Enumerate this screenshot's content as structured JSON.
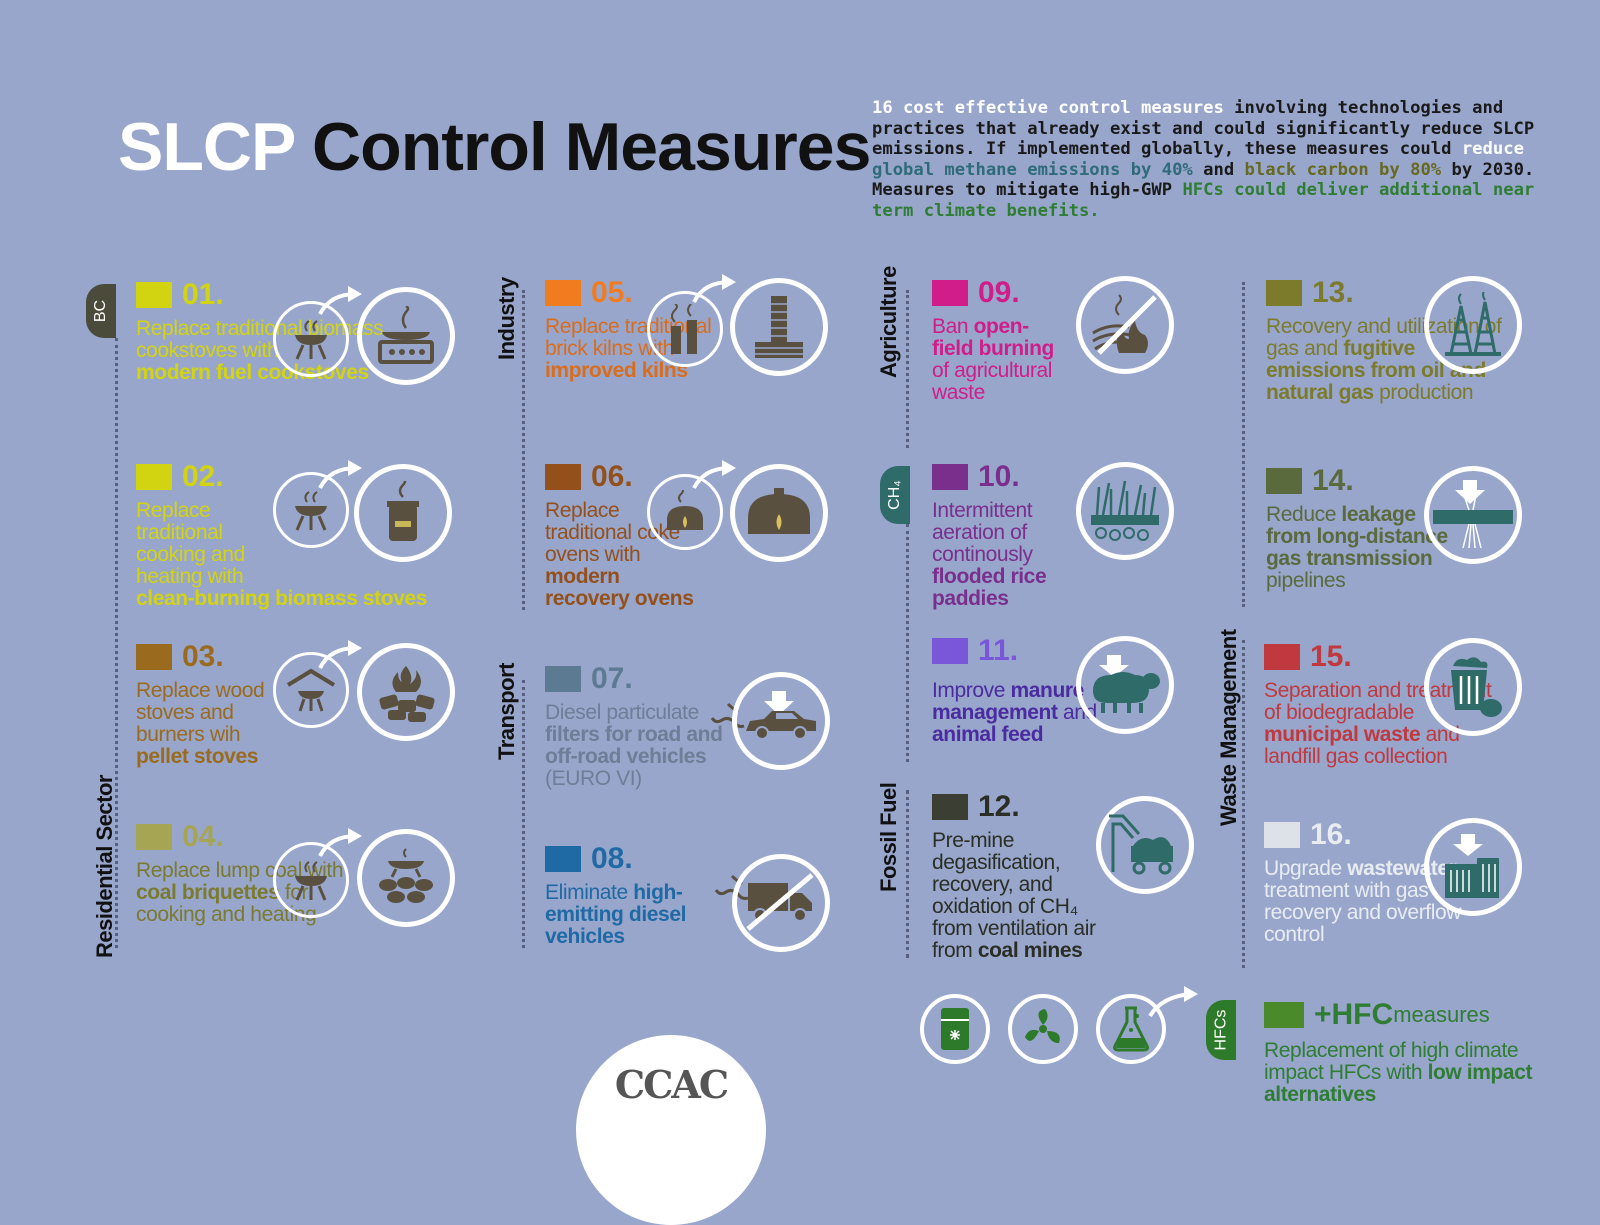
{
  "title": {
    "part1": "SLCP",
    "part2": "Control Measures"
  },
  "intro": {
    "s1": "16 cost effective control measures",
    "s2": " involving technologies and practices that already exist and could significantly reduce SLCP emissions. If implemented globally, these measures could ",
    "s3": "reduce",
    "s4": " global methane emissions by 40%",
    "s5": " and ",
    "s6": "black carbon by 80%",
    "s7": " by 2030. Measures to mitigate high-GWP ",
    "s8": "HFCs could deliver additional near term climate benefits."
  },
  "sectors": {
    "residential": "Residential Sector",
    "industry": "Industry",
    "transport": "Transport",
    "agriculture": "Agriculture",
    "fossil": "Fossil Fuel",
    "waste": "Waste Management",
    "bc_tab": "BC",
    "ch4_tab": "CH₄",
    "hfc_tab": "HFCs"
  },
  "colors": {
    "m01": "#d3d411",
    "m02": "#d3d411",
    "m03": "#9a6b1f",
    "m04": "#a6a554",
    "m05": "#f07c1f",
    "m06": "#93501b",
    "m07": "#5c7a92",
    "m08": "#1f6aa5",
    "m09": "#d01d8a",
    "m10": "#7a2f8c",
    "m11": "#7a57d8",
    "m12": "#3b3f33",
    "m13": "#7c7b2c",
    "m14": "#5a6a3c",
    "m15": "#c0393f",
    "m16": "#dde2e8",
    "hfc": "#4a8a2a",
    "icon_dark": "#5a5040",
    "icon_teal": "#2f6b68",
    "icon_green": "#2c7a2a"
  },
  "measures": {
    "m01": {
      "num": "01.",
      "t1": "Replace traditional biomass cookstoves with",
      "t2": "modern fuel cookstoves"
    },
    "m02": {
      "num": "02.",
      "t1": "Replace traditional cooking and heating with",
      "t2": "clean-burning biomass stoves"
    },
    "m03": {
      "num": "03.",
      "t1": "Replace wood stoves and burners wih",
      "t2": "pellet stoves"
    },
    "m04": {
      "num": "04.",
      "t1": "Replace lump coal with",
      "t2": "coal briquettes",
      "t3": "for cooking and heating"
    },
    "m05": {
      "num": "05.",
      "t1": "Replace traditional brick kilns with",
      "t2": "improved kilns"
    },
    "m06": {
      "num": "06.",
      "t1": "Replace traditional coke ovens with",
      "t2": "modern recovery ovens"
    },
    "m07": {
      "num": "07.",
      "t1": "Diesel particulate",
      "t2": "filters for road and off-road vehicles",
      "t3": "(EURO VI)"
    },
    "m08": {
      "num": "08.",
      "t1": "Eliminate",
      "t2": "high-emitting diesel vehicles"
    },
    "m09": {
      "num": "09.",
      "t1": "Ban",
      "t2": "open-field burning",
      "t3": "of agricultural waste"
    },
    "m10": {
      "num": "10.",
      "t1": "Intermittent aeration of continously",
      "t2": "flooded rice paddies"
    },
    "m11": {
      "num": "11.",
      "t1": "Improve",
      "t2": "manure management",
      "t3": "and",
      "t4": "animal feed"
    },
    "m12": {
      "num": "12.",
      "t1": "Pre-mine degasification, recovery, and oxidation of CH₄ from ventilation air from",
      "t2": "coal mines"
    },
    "m13": {
      "num": "13.",
      "t1": "Recovery and utilization of gas and",
      "t2": "fugitive emissions from oil and natural gas",
      "t3": "production"
    },
    "m14": {
      "num": "14.",
      "t1": "Reduce",
      "t2": "leakage from long-distance gas transmission",
      "t3": "pipelines"
    },
    "m15": {
      "num": "15.",
      "t1": "Separation and treatment of biodegradable",
      "t2": "municipal waste",
      "t3": "and landfill gas collection"
    },
    "m16": {
      "num": "16.",
      "t1": "Upgrade",
      "t2": "wastewater",
      "t3": "treatment with gas recovery and overflow control"
    }
  },
  "hfc": {
    "num": "+HFC",
    "label": " measures",
    "t1": "Replacement of high climate impact HFCs with",
    "t2": "low impact alternatives"
  },
  "logo": "CCAC"
}
